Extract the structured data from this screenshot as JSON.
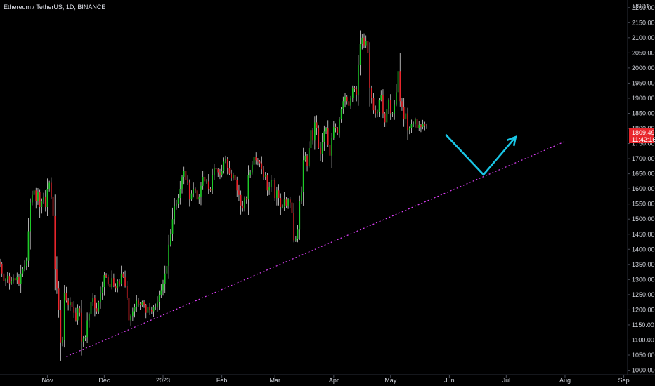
{
  "symbol_title": "Ethereum / TetherUS, 1D, BINANCE",
  "currency": "USDT",
  "last_price": {
    "value": "1809.49",
    "countdown": "11:42:16",
    "color": "#e8262c"
  },
  "colors": {
    "background": "#000000",
    "up": "#1ecb28",
    "down": "#e8262c",
    "wick": "#d9d9d9",
    "trendline": "#e040fb",
    "arrow": "#19c6e6",
    "axis_line": "#2a2e39"
  },
  "chart_data": {
    "type": "candlestick",
    "title": "Ethereum / TetherUS, 1D, BINANCE",
    "x_month_labels": [
      "Nov",
      "Dec",
      "2023",
      "Feb",
      "Mar",
      "Apr",
      "May",
      "Jun",
      "Jul",
      "Aug",
      "Sep"
    ],
    "x_month_dates": [
      "2022-11-01",
      "2022-12-01",
      "2023-01-01",
      "2023-02-01",
      "2023-03-01",
      "2023-04-01",
      "2023-05-01",
      "2023-06-01",
      "2023-07-01",
      "2023-08-01",
      "2023-09-01"
    ],
    "y_ticks": [
      1000,
      1050,
      1100,
      1150,
      1200,
      1250,
      1300,
      1350,
      1400,
      1450,
      1500,
      1550,
      1600,
      1650,
      1700,
      1750,
      1800,
      1850,
      1900,
      1950,
      2000,
      2050,
      2100,
      2150,
      2200
    ],
    "ylim": [
      985,
      2225
    ],
    "xlim": [
      "2022-10-07",
      "2023-09-03"
    ],
    "ylabel": "USDT",
    "grid": false,
    "series": [
      {
        "name": "ETHUSDT",
        "start_date": "2022-10-07",
        "close": [
          1352,
          1320,
          1295,
          1300,
          1312,
          1288,
          1295,
          1305,
          1298,
          1310,
          1285,
          1320,
          1335,
          1345,
          1362,
          1460,
          1555,
          1580,
          1595,
          1560,
          1590,
          1540,
          1560,
          1575,
          1540,
          1600,
          1620,
          1575,
          1510,
          1333,
          1270,
          1200,
          1090,
          1100,
          1255,
          1230,
          1215,
          1225,
          1210,
          1190,
          1165,
          1205,
          1190,
          1095,
          1105,
          1110,
          1165,
          1185,
          1225,
          1240,
          1205,
          1195,
          1225,
          1255,
          1275,
          1315,
          1310,
          1285,
          1275,
          1305,
          1280,
          1270,
          1295,
          1285,
          1320,
          1310,
          1280,
          1240,
          1165,
          1180,
          1195,
          1210,
          1230,
          1220,
          1215,
          1225,
          1215,
          1190,
          1210,
          1200,
          1195,
          1210,
          1210,
          1225,
          1250,
          1265,
          1285,
          1320,
          1345,
          1415,
          1450,
          1500,
          1545,
          1550,
          1570,
          1600,
          1640,
          1660,
          1630,
          1620,
          1565,
          1585,
          1600,
          1595,
          1565,
          1575,
          1610,
          1640,
          1625,
          1625,
          1600,
          1595,
          1645,
          1670,
          1665,
          1655,
          1645,
          1660,
          1690,
          1700,
          1670,
          1650,
          1635,
          1645,
          1630,
          1595,
          1580,
          1545,
          1535,
          1570,
          1565,
          1645,
          1655,
          1680,
          1705,
          1695,
          1690,
          1685,
          1665,
          1640,
          1645,
          1595,
          1605,
          1630,
          1630,
          1570,
          1595,
          1570,
          1540,
          1540,
          1565,
          1545,
          1565,
          1555,
          1520,
          1430,
          1435,
          1465,
          1560,
          1590,
          1695,
          1710,
          1675,
          1735,
          1795,
          1760,
          1820,
          1800,
          1735,
          1715,
          1755,
          1790,
          1800,
          1745,
          1710,
          1770,
          1805,
          1800,
          1785,
          1830,
          1865,
          1890,
          1905,
          1890,
          1875,
          1900,
          1935,
          1930,
          1910,
          2010,
          2080,
          2100,
          2075,
          2090,
          2050,
          1935,
          1900,
          1860,
          1850,
          1855,
          1895,
          1910,
          1850,
          1820,
          1865,
          1895,
          1850,
          1850,
          1880,
          1920,
          1990,
          1890,
          1870,
          1830,
          1850,
          1795,
          1800,
          1815,
          1815,
          1830,
          1800,
          1812,
          1805,
          1815,
          1810,
          1809.49
        ]
      }
    ],
    "trendline": {
      "from": {
        "date": "2022-11-11",
        "price": 1045
      },
      "to": {
        "date": "2023-08-01",
        "price": 1757
      }
    },
    "projection_arrow": {
      "points": [
        {
          "date": "2023-05-30",
          "price": 1780
        },
        {
          "date": "2023-06-19",
          "price": 1647
        },
        {
          "date": "2023-07-06",
          "price": 1772
        }
      ]
    }
  }
}
